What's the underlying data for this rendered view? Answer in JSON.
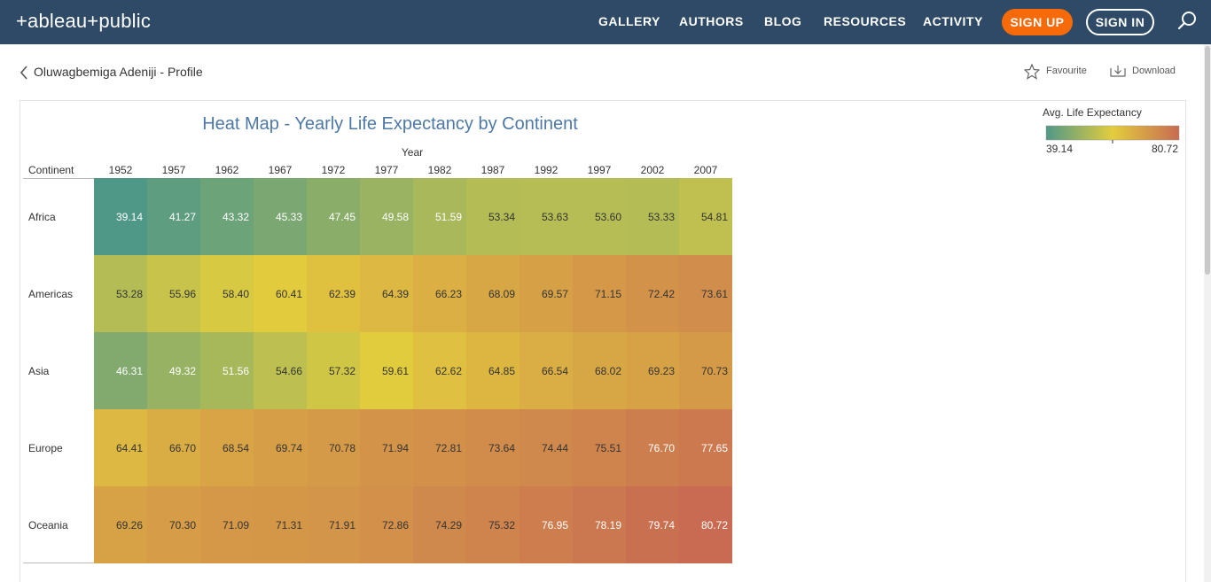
{
  "header": {
    "logo_text": "+ableau+public",
    "nav": [
      "GALLERY",
      "AUTHORS",
      "BLOG",
      "RESOURCES",
      "ACTIVITY"
    ],
    "signup_label": "SIGN UP",
    "signin_label": "SIGN IN",
    "search_icon": "search-icon",
    "brand_color": "#2e4a66",
    "signup_color": "#f66a0a"
  },
  "profile": {
    "back_label": "Oluwagbemiga Adeniji - Profile",
    "favourite_label": "Favourite",
    "download_label": "Download"
  },
  "legend": {
    "title": "Avg. Life Expectancy",
    "min_label": "39.14",
    "max_label": "80.72",
    "colors": [
      "#4f9888",
      "#e3cd3d",
      "#c86b52"
    ]
  },
  "chart_data": {
    "type": "heatmap",
    "title": "Heat Map - Yearly Life Expectancy by Continent",
    "xlabel": "Year",
    "ylabel": "Continent",
    "x": [
      "1952",
      "1957",
      "1962",
      "1967",
      "1972",
      "1977",
      "1982",
      "1987",
      "1992",
      "1997",
      "2002",
      "2007"
    ],
    "y": [
      "Africa",
      "Americas",
      "Asia",
      "Europe",
      "Oceania"
    ],
    "values": [
      [
        39.14,
        41.27,
        43.32,
        45.33,
        47.45,
        49.58,
        51.59,
        53.34,
        53.63,
        53.6,
        53.33,
        54.81
      ],
      [
        53.28,
        55.96,
        58.4,
        60.41,
        62.39,
        64.39,
        66.23,
        68.09,
        69.57,
        71.15,
        72.42,
        73.61
      ],
      [
        46.31,
        49.32,
        51.56,
        54.66,
        57.32,
        59.61,
        62.62,
        64.85,
        66.54,
        68.02,
        69.23,
        70.73
      ],
      [
        64.41,
        66.7,
        68.54,
        69.74,
        70.78,
        71.94,
        72.81,
        73.64,
        74.44,
        75.51,
        76.7,
        77.65
      ],
      [
        69.26,
        70.3,
        71.09,
        71.31,
        71.91,
        72.86,
        74.29,
        75.32,
        76.95,
        78.19,
        79.74,
        80.72
      ]
    ],
    "value_labels": [
      [
        "39.14",
        "41.27",
        "43.32",
        "45.33",
        "47.45",
        "49.58",
        "51.59",
        "53.34",
        "53.63",
        "53.60",
        "53.33",
        "54.81"
      ],
      [
        "53.28",
        "55.96",
        "58.40",
        "60.41",
        "62.39",
        "64.39",
        "66.23",
        "68.09",
        "69.57",
        "71.15",
        "72.42",
        "73.61"
      ],
      [
        "46.31",
        "49.32",
        "51.56",
        "54.66",
        "57.32",
        "59.61",
        "62.62",
        "64.85",
        "66.54",
        "68.02",
        "69.23",
        "70.73"
      ],
      [
        "64.41",
        "66.70",
        "68.54",
        "69.74",
        "70.78",
        "71.94",
        "72.81",
        "73.64",
        "74.44",
        "75.51",
        "76.70",
        "77.65"
      ],
      [
        "69.26",
        "70.30",
        "71.09",
        "71.31",
        "71.91",
        "72.86",
        "74.29",
        "75.32",
        "76.95",
        "78.19",
        "79.74",
        "80.72"
      ]
    ],
    "color_range": [
      39.14,
      80.72
    ],
    "legend_position": "top-right"
  }
}
